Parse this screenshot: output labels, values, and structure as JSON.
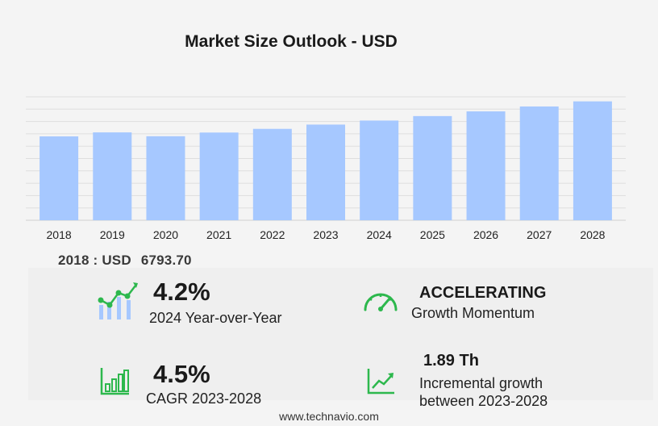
{
  "chart_data": {
    "type": "bar",
    "title": "Market Size Outlook  - USD",
    "categories": [
      "2018",
      "2019",
      "2020",
      "2021",
      "2022",
      "2023",
      "2024",
      "2025",
      "2026",
      "2027",
      "2028"
    ],
    "values": [
      6793.7,
      7118.0,
      6806.0,
      7105.0,
      7405.0,
      7750.0,
      8077.0,
      8440.0,
      8820.0,
      9217.0,
      9632.0
    ],
    "ylim": [
      0,
      10000
    ],
    "grid": true,
    "bar_color": "#a6c8ff"
  },
  "base_year": {
    "label": "2018 : USD",
    "value": "6793.70"
  },
  "stats": {
    "yoy": {
      "value": "4.2%",
      "label": "2024 Year-over-Year"
    },
    "momentum": {
      "value": "ACCELERATING",
      "label": "Growth Momentum"
    },
    "cagr": {
      "value": "4.5%",
      "label": "CAGR 2023-2028"
    },
    "incremental": {
      "value": "1.89 Th",
      "label1": "Incremental growth",
      "label2": "between 2023-2028"
    }
  },
  "colors": {
    "accent_green": "#2db84d",
    "icon_blue": "#a6c8ff"
  },
  "footer": {
    "url": "www.technavio.com"
  }
}
